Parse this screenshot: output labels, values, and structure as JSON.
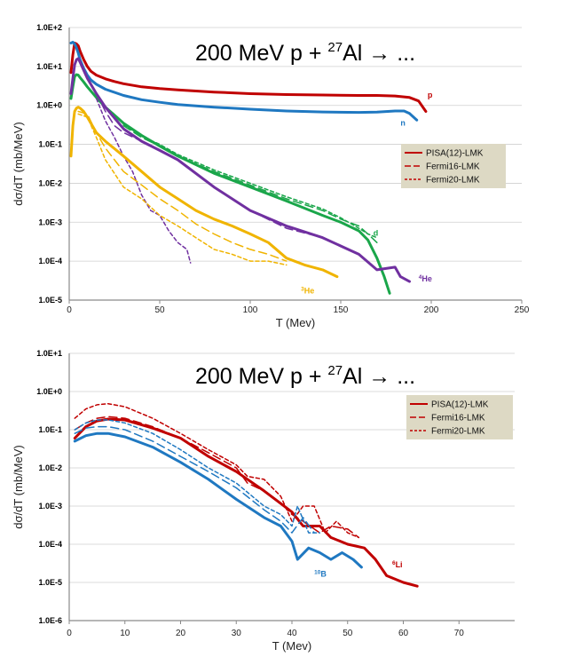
{
  "chart_data": [
    {
      "type": "line",
      "title_main": "200 MeV p + ",
      "title_sup": "27",
      "title_end": "Al → ...",
      "xlabel": "T (Mev)",
      "ylabel": "dσ/dT (mb/MeV)",
      "xlim": [
        0,
        250
      ],
      "ylim": [
        1e-05,
        100
      ],
      "xticks": [
        "0",
        "50",
        "100",
        "150",
        "200",
        "250"
      ],
      "yticks": [
        "1.0E+2",
        "1.0E+1",
        "1.0E+0",
        "1.0E-1",
        "1.0E-2",
        "1.0E-3",
        "1.0E-4",
        "1.0E-5"
      ],
      "grid": true,
      "legend_position": "right",
      "legend": [
        {
          "label": "PISA(12)-LMK",
          "style": "solid"
        },
        {
          "label": "Fermi16-LMK",
          "style": "dashed"
        },
        {
          "label": "Fermi20-LMK",
          "style": "dotted"
        }
      ],
      "annotations": [
        {
          "text": "p",
          "x": 198,
          "y": 1.6,
          "color": "#c00000",
          "sup": ""
        },
        {
          "text": "n",
          "x": 183,
          "y": 0.3,
          "color": "#1f78c1",
          "sup": ""
        },
        {
          "text": "d",
          "x": 168,
          "y": 0.00045,
          "color": "#1aa64a",
          "sup": ""
        },
        {
          "text": "He",
          "x": 193,
          "y": 3e-05,
          "color": "#7030a0",
          "sup": "4"
        },
        {
          "text": "He",
          "x": 128,
          "y": 1.5e-05,
          "color": "#f0b400",
          "sup": "3"
        }
      ],
      "series": [
        {
          "name": "p PISA(12)-LMK",
          "color": "#c00000",
          "width": 3,
          "dash": "solid",
          "x": [
            1,
            2,
            3,
            4,
            5,
            6,
            8,
            10,
            12,
            15,
            20,
            25,
            30,
            40,
            50,
            60,
            80,
            100,
            120,
            140,
            160,
            170,
            180,
            188,
            193,
            197
          ],
          "y": [
            7,
            20,
            40,
            38,
            34,
            25,
            15,
            10,
            7.5,
            6,
            4.8,
            4.1,
            3.6,
            3.0,
            2.7,
            2.5,
            2.2,
            2.0,
            1.9,
            1.85,
            1.8,
            1.8,
            1.75,
            1.6,
            1.3,
            0.7
          ]
        },
        {
          "name": "n PISA(12)-LMK",
          "color": "#1f78c1",
          "width": 3,
          "dash": "solid",
          "x": [
            1,
            2,
            3,
            4,
            5,
            6,
            8,
            10,
            12,
            15,
            20,
            30,
            40,
            50,
            60,
            80,
            100,
            120,
            140,
            160,
            170,
            180,
            185,
            188,
            192
          ],
          "y": [
            40,
            42,
            38,
            30,
            22,
            15,
            9,
            6,
            4.5,
            3.5,
            2.6,
            1.8,
            1.4,
            1.2,
            1.05,
            0.9,
            0.8,
            0.72,
            0.68,
            0.66,
            0.67,
            0.72,
            0.72,
            0.62,
            0.42
          ]
        },
        {
          "name": "d PISA(12)-LMK",
          "color": "#1aa64a",
          "width": 3,
          "dash": "solid",
          "x": [
            1,
            2,
            3,
            4,
            5,
            6,
            8,
            10,
            15,
            20,
            30,
            40,
            50,
            60,
            80,
            100,
            120,
            140,
            150,
            160,
            165,
            170,
            174,
            177
          ],
          "y": [
            1.5,
            3,
            5.5,
            6.2,
            6,
            5.2,
            4,
            3,
            1.6,
            0.9,
            0.35,
            0.17,
            0.09,
            0.05,
            0.018,
            0.008,
            0.0035,
            0.0015,
            0.001,
            0.0006,
            0.00035,
            0.00012,
            4e-05,
            1.5e-05
          ]
        },
        {
          "name": "d Fermi16-LMK",
          "color": "#1aa64a",
          "width": 1.5,
          "dash": "dashed",
          "x": [
            30,
            40,
            50,
            60,
            80,
            100,
            120,
            140,
            150,
            160,
            165,
            170
          ],
          "y": [
            0.3,
            0.15,
            0.09,
            0.05,
            0.02,
            0.009,
            0.004,
            0.002,
            0.0012,
            0.0008,
            0.0005,
            0.0003
          ]
        },
        {
          "name": "d Fermi20-LMK",
          "color": "#1aa64a",
          "width": 1.5,
          "dash": "dotted",
          "x": [
            30,
            40,
            50,
            60,
            80,
            100,
            120,
            140,
            150,
            160,
            165,
            170
          ],
          "y": [
            0.32,
            0.16,
            0.1,
            0.055,
            0.022,
            0.01,
            0.0045,
            0.0022,
            0.0013,
            0.0007,
            0.0005,
            0.0004
          ]
        },
        {
          "name": "4He PISA(12)-LMK",
          "color": "#7030a0",
          "width": 3,
          "dash": "solid",
          "x": [
            1,
            2,
            3,
            4,
            5,
            6,
            8,
            10,
            15,
            20,
            30,
            40,
            50,
            60,
            80,
            100,
            120,
            140,
            160,
            170,
            180,
            183,
            188
          ],
          "y": [
            2,
            5,
            11,
            15,
            16,
            13,
            8,
            5,
            2,
            0.9,
            0.25,
            0.12,
            0.07,
            0.04,
            0.008,
            0.002,
            0.0008,
            0.0004,
            0.00015,
            6e-05,
            7e-05,
            4e-05,
            3e-05
          ]
        },
        {
          "name": "4He Fermi16-LMK",
          "color": "#7030a0",
          "width": 1.5,
          "dash": "dashed",
          "x": [
            15,
            20,
            25,
            30,
            40,
            50,
            60,
            80,
            100,
            120,
            140,
            160
          ],
          "y": [
            2,
            0.7,
            0.3,
            0.2,
            0.12,
            0.07,
            0.04,
            0.008,
            0.002,
            0.0007,
            0.0004,
            0.00015
          ]
        },
        {
          "name": "4He Fermi20-LMK",
          "color": "#7030a0",
          "width": 1.5,
          "dash": "dotted",
          "x": [
            15,
            20,
            25,
            30,
            35,
            40,
            45,
            50,
            55,
            60,
            65,
            67
          ],
          "y": [
            1.5,
            0.4,
            0.15,
            0.05,
            0.02,
            0.005,
            0.002,
            0.0015,
            0.0006,
            0.0003,
            0.0002,
            9e-05
          ]
        },
        {
          "name": "3He PISA(12)-LMK",
          "color": "#f0b400",
          "width": 3,
          "dash": "solid",
          "x": [
            1,
            2,
            3,
            4,
            5,
            6,
            8,
            10,
            15,
            20,
            30,
            40,
            50,
            60,
            70,
            80,
            90,
            100,
            110,
            120,
            130,
            140,
            148
          ],
          "y": [
            0.05,
            0.3,
            0.7,
            0.85,
            0.9,
            0.85,
            0.7,
            0.5,
            0.2,
            0.12,
            0.05,
            0.02,
            0.008,
            0.004,
            0.002,
            0.0012,
            0.0008,
            0.0005,
            0.0003,
            0.00012,
            8e-05,
            6e-05,
            4e-05
          ]
        },
        {
          "name": "3He Fermi16-LMK",
          "color": "#f0b400",
          "width": 1.5,
          "dash": "dashed",
          "x": [
            5,
            10,
            15,
            20,
            30,
            40,
            50,
            60,
            70,
            80,
            90,
            100,
            110,
            120
          ],
          "y": [
            0.7,
            0.6,
            0.2,
            0.08,
            0.02,
            0.009,
            0.004,
            0.002,
            0.0009,
            0.0005,
            0.0003,
            0.0002,
            0.00015,
            0.0001
          ]
        },
        {
          "name": "3He Fermi20-LMK",
          "color": "#f0b400",
          "width": 1.5,
          "dash": "dotted",
          "x": [
            5,
            10,
            15,
            20,
            30,
            40,
            50,
            60,
            70,
            80,
            90,
            100,
            110,
            120
          ],
          "y": [
            0.6,
            0.5,
            0.15,
            0.04,
            0.008,
            0.004,
            0.0015,
            0.0008,
            0.0004,
            0.0002,
            0.00015,
            0.0001,
            0.0001,
            8e-05
          ]
        }
      ]
    },
    {
      "type": "line",
      "title_main": "200 MeV p + ",
      "title_sup": "27",
      "title_end": "Al → ...",
      "xlabel": "T (Mev)",
      "ylabel": "dσ/dT (mb/MeV)",
      "xlim": [
        0,
        80
      ],
      "ylim": [
        1e-06,
        10
      ],
      "xticks": [
        "0",
        "10",
        "20",
        "30",
        "40",
        "50",
        "60",
        "70"
      ],
      "yticks": [
        "1.0E+1",
        "1.0E+0",
        "1.0E-1",
        "1.0E-2",
        "1.0E-3",
        "1.0E-4",
        "1.0E-5",
        "1.0E-6"
      ],
      "grid": true,
      "legend_position": "right",
      "legend": [
        {
          "label": "PISA(12)-LMK",
          "style": "solid"
        },
        {
          "label": "Fermi16-LMK",
          "style": "dashed"
        },
        {
          "label": "Fermi20-LMK",
          "style": "dotted"
        }
      ],
      "annotations": [
        {
          "text": "Li",
          "x": 58,
          "y": 2.5e-05,
          "color": "#c00000",
          "sup": "6"
        },
        {
          "text": "B",
          "x": 44,
          "y": 1.4e-05,
          "color": "#1f78c1",
          "sup": "10"
        }
      ],
      "series": [
        {
          "name": "6Li PISA(12)-LMK",
          "color": "#c00000",
          "width": 3,
          "dash": "solid",
          "x": [
            1,
            3,
            5,
            7,
            10,
            15,
            20,
            25,
            30,
            35,
            37,
            40,
            42,
            45,
            47,
            50,
            53,
            55,
            57,
            60,
            62.5
          ],
          "y": [
            0.06,
            0.12,
            0.17,
            0.19,
            0.18,
            0.11,
            0.06,
            0.02,
            0.008,
            0.0025,
            0.0015,
            0.0007,
            0.0003,
            0.0003,
            0.00015,
            0.0001,
            8e-05,
            4e-05,
            1.5e-05,
            1e-05,
            8e-06
          ]
        },
        {
          "name": "6Li Fermi16-LMK",
          "color": "#c00000",
          "width": 1.5,
          "dash": "dashed",
          "x": [
            1,
            3,
            5,
            7,
            10,
            15,
            20,
            25,
            30,
            32,
            35,
            38,
            40,
            42,
            45,
            47,
            50,
            52
          ],
          "y": [
            0.1,
            0.15,
            0.2,
            0.22,
            0.2,
            0.12,
            0.06,
            0.025,
            0.01,
            0.004,
            0.0025,
            0.0012,
            0.0006,
            0.0004,
            0.0002,
            0.0003,
            0.00025,
            0.00015
          ]
        },
        {
          "name": "6Li Fermi20-LMK",
          "color": "#c00000",
          "width": 1.5,
          "dash": "dotted",
          "x": [
            1,
            3,
            5,
            7,
            10,
            15,
            20,
            25,
            30,
            32,
            35,
            38,
            40,
            42,
            44,
            46,
            48,
            50,
            52
          ],
          "y": [
            0.2,
            0.35,
            0.45,
            0.48,
            0.4,
            0.2,
            0.08,
            0.03,
            0.012,
            0.006,
            0.005,
            0.0018,
            0.0004,
            0.001,
            0.001,
            0.0002,
            0.0004,
            0.0002,
            0.00015
          ]
        },
        {
          "name": "10B PISA(12)-LMK",
          "color": "#1f78c1",
          "width": 3,
          "dash": "solid",
          "x": [
            1,
            3,
            5,
            7,
            10,
            15,
            20,
            25,
            30,
            35,
            38,
            40,
            41,
            43,
            45,
            47,
            49,
            51,
            52.5
          ],
          "y": [
            0.05,
            0.07,
            0.08,
            0.08,
            0.065,
            0.035,
            0.014,
            0.005,
            0.0015,
            0.0005,
            0.0003,
            0.00012,
            4e-05,
            8e-05,
            6e-05,
            4e-05,
            6e-05,
            4e-05,
            2.5e-05
          ]
        },
        {
          "name": "10B Fermi16-LMK",
          "color": "#1f78c1",
          "width": 1.5,
          "dash": "dashed",
          "x": [
            1,
            3,
            5,
            7,
            10,
            15,
            20,
            25,
            30,
            35,
            38,
            40,
            42,
            44
          ],
          "y": [
            0.08,
            0.11,
            0.12,
            0.12,
            0.1,
            0.05,
            0.02,
            0.008,
            0.003,
            0.0008,
            0.0004,
            0.0002,
            0.0005,
            0.0002
          ]
        },
        {
          "name": "10B Fermi20-LMK",
          "color": "#1f78c1",
          "width": 1.5,
          "dash": "dotted",
          "x": [
            1,
            3,
            5,
            7,
            10,
            15,
            20,
            25,
            30,
            35,
            38,
            40,
            41,
            43,
            45
          ],
          "y": [
            0.1,
            0.15,
            0.18,
            0.18,
            0.15,
            0.08,
            0.03,
            0.01,
            0.004,
            0.001,
            0.0006,
            0.0003,
            0.001,
            0.0002,
            0.0002
          ]
        }
      ]
    }
  ]
}
